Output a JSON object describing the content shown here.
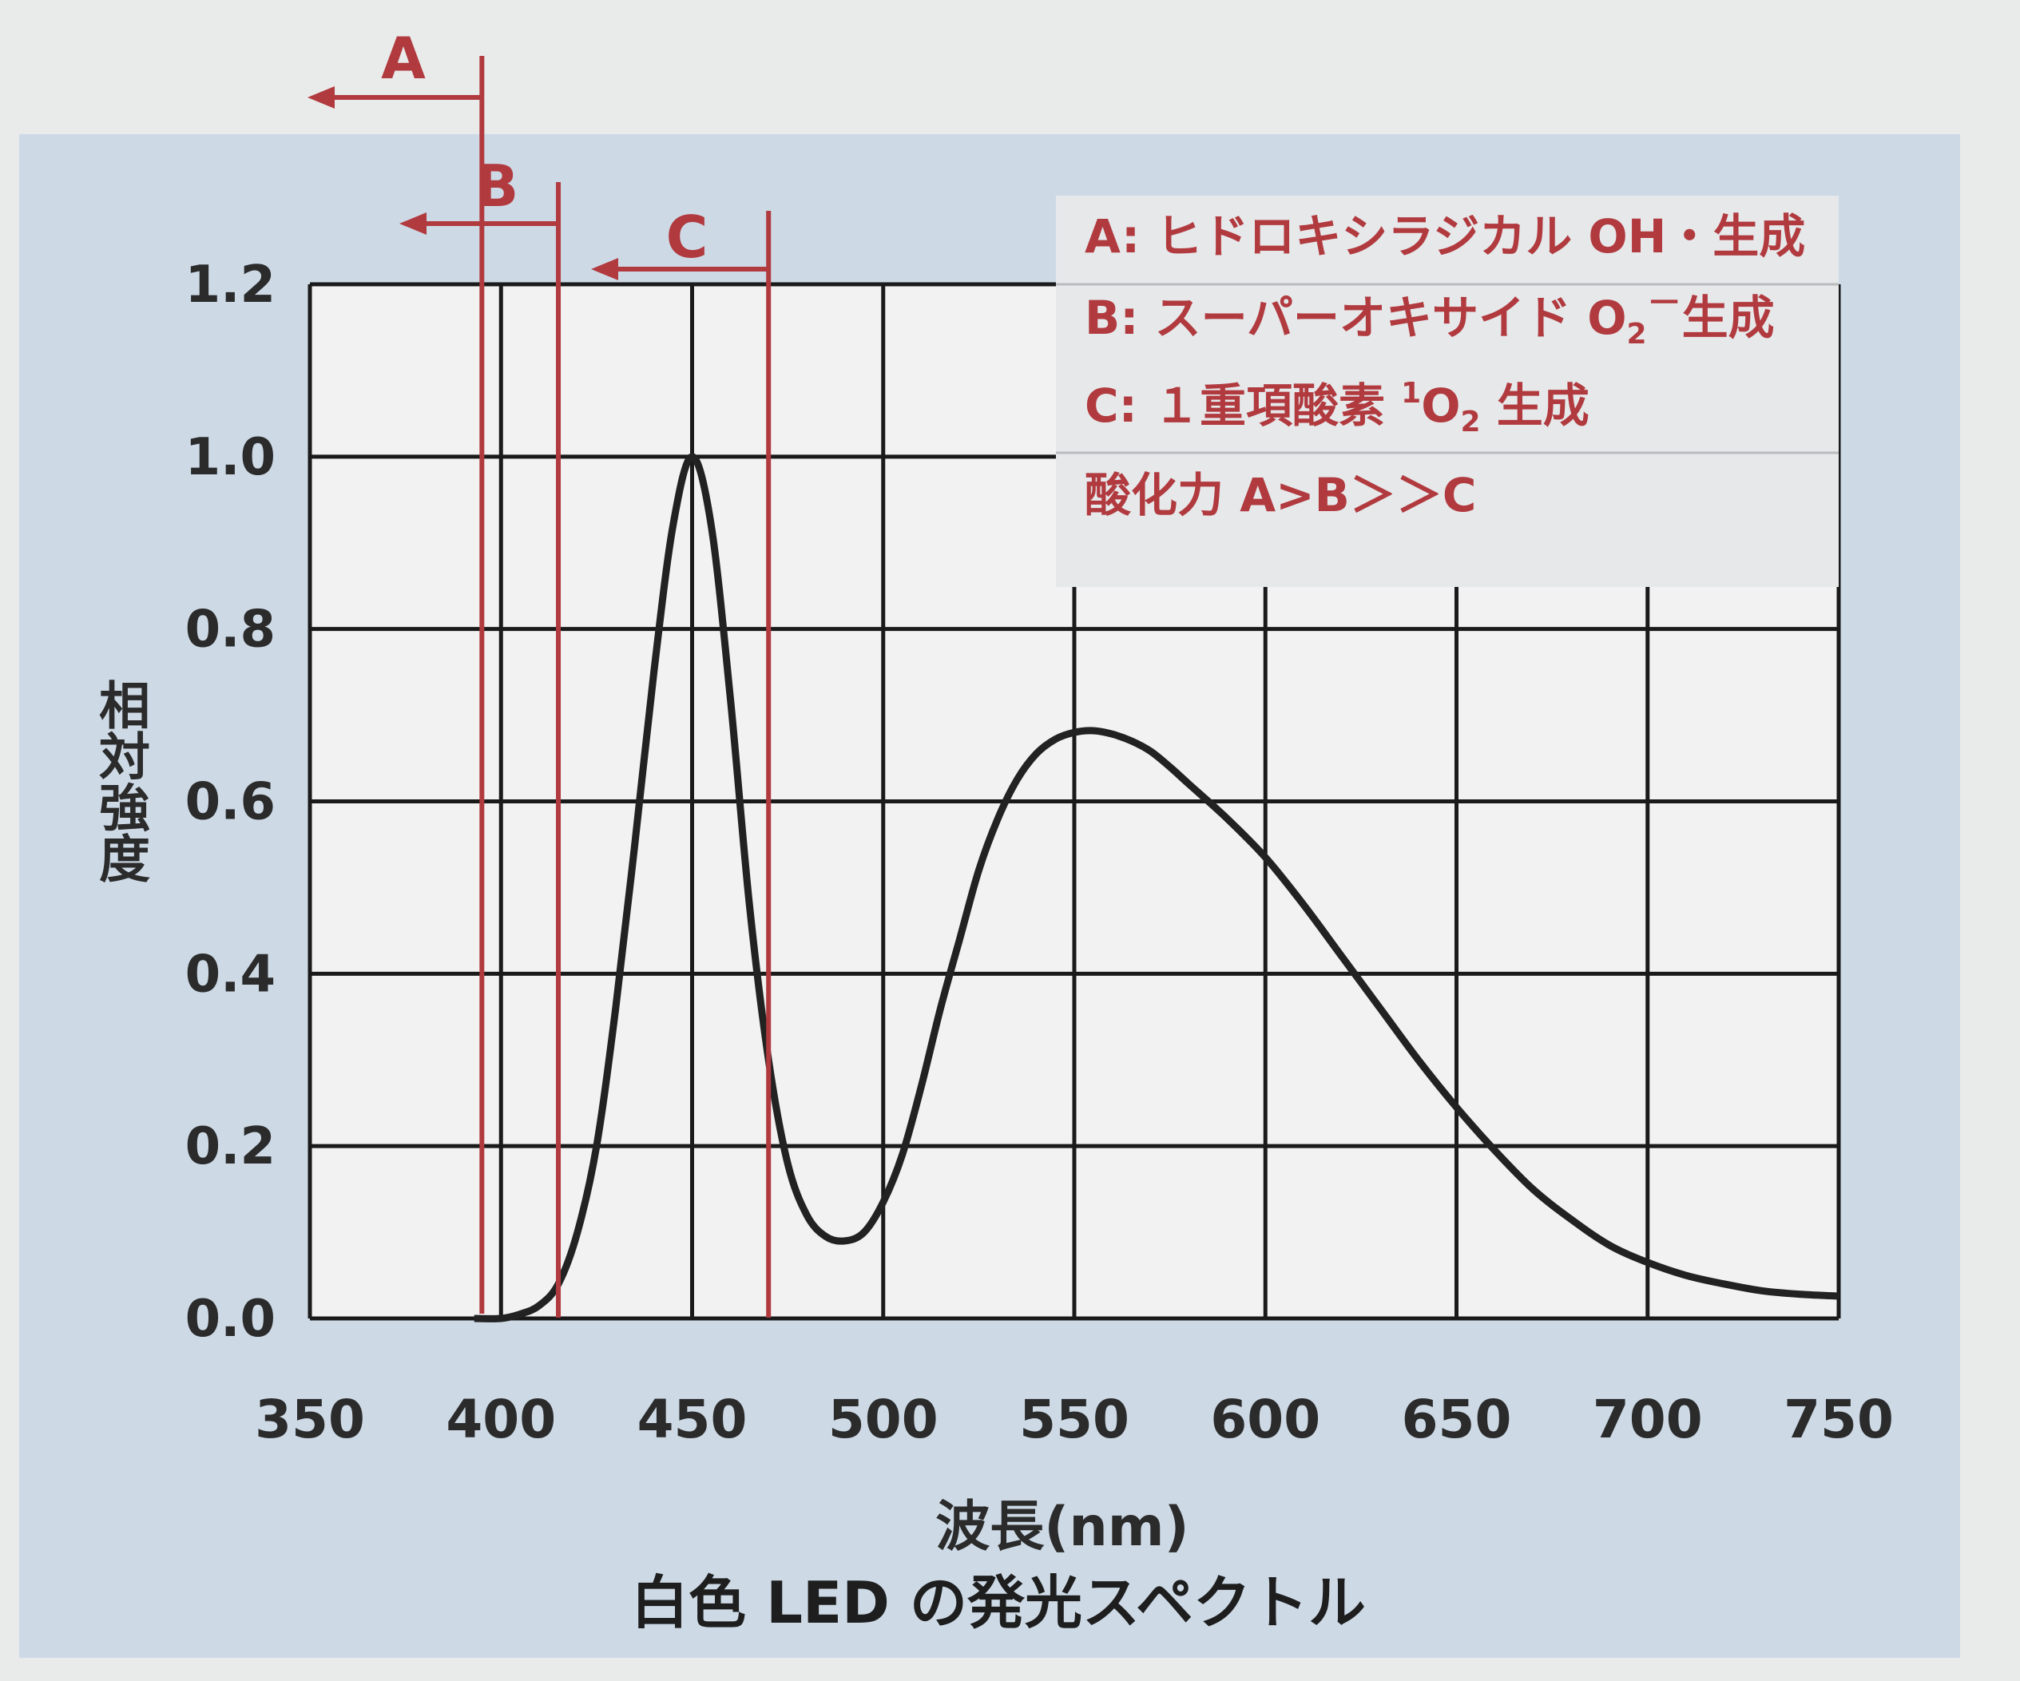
{
  "chart_data": {
    "type": "line",
    "title": "白色 LED の発光スペクトル",
    "xlabel": "波長(nm)",
    "ylabel": "相対強度",
    "xlim": [
      350,
      750
    ],
    "ylim": [
      0,
      1.2
    ],
    "x_ticks": [
      "350",
      "400",
      "450",
      "500",
      "550",
      "600",
      "650",
      "700",
      "750"
    ],
    "y_ticks": [
      "0.0",
      "0.2",
      "0.4",
      "0.6",
      "0.8",
      "1.0",
      "1.2"
    ],
    "grid": true,
    "series": [
      {
        "x": [
          393,
          400,
          405,
          410,
          415,
          420,
          425,
          430,
          435,
          440,
          445,
          450,
          455,
          460,
          465,
          470,
          475,
          480,
          485,
          490,
          495,
          500,
          505,
          510,
          515,
          520,
          525,
          530,
          535,
          540,
          545,
          550,
          555,
          560,
          565,
          570,
          575,
          580,
          590,
          600,
          610,
          620,
          630,
          640,
          650,
          660,
          670,
          680,
          690,
          700,
          710,
          720,
          730,
          740,
          750
        ],
        "y": [
          0.0,
          0.0,
          0.005,
          0.015,
          0.04,
          0.1,
          0.2,
          0.36,
          0.55,
          0.75,
          0.92,
          1.0,
          0.92,
          0.72,
          0.48,
          0.3,
          0.18,
          0.12,
          0.095,
          0.09,
          0.1,
          0.135,
          0.19,
          0.27,
          0.36,
          0.44,
          0.52,
          0.58,
          0.625,
          0.655,
          0.672,
          0.68,
          0.682,
          0.678,
          0.67,
          0.658,
          0.64,
          0.62,
          0.58,
          0.535,
          0.48,
          0.42,
          0.36,
          0.3,
          0.245,
          0.195,
          0.15,
          0.115,
          0.085,
          0.065,
          0.05,
          0.04,
          0.032,
          0.028,
          0.026
        ]
      }
    ],
    "markers": [
      {
        "label": "A",
        "x": 395
      },
      {
        "label": "B",
        "x": 415
      },
      {
        "label": "C",
        "x": 470
      }
    ],
    "legend": {
      "placement": "top-right",
      "lines": [
        {
          "lead": "A:",
          "text": "ヒドロキシラジカル OH・生成"
        },
        {
          "lead": "B:",
          "text": "スーパーオキサイド O",
          "sub": "2",
          "sup": "－",
          "tail": "生成"
        },
        {
          "lead": "C:",
          "text": "１重項酸素 ",
          "presup": "1",
          "base": "O",
          "sub": "2",
          "tail": " 生成"
        },
        {
          "text": "酸化力  A>B＞＞C"
        }
      ]
    },
    "colors": {
      "panel": "#cddae6",
      "plot_bg": "#f2f2f2",
      "grid": "#1a1a1a",
      "curve": "#222222",
      "marker": "#b13a3f",
      "legend_bg": "#e6e8ea",
      "text": "#2b2b2b"
    }
  }
}
